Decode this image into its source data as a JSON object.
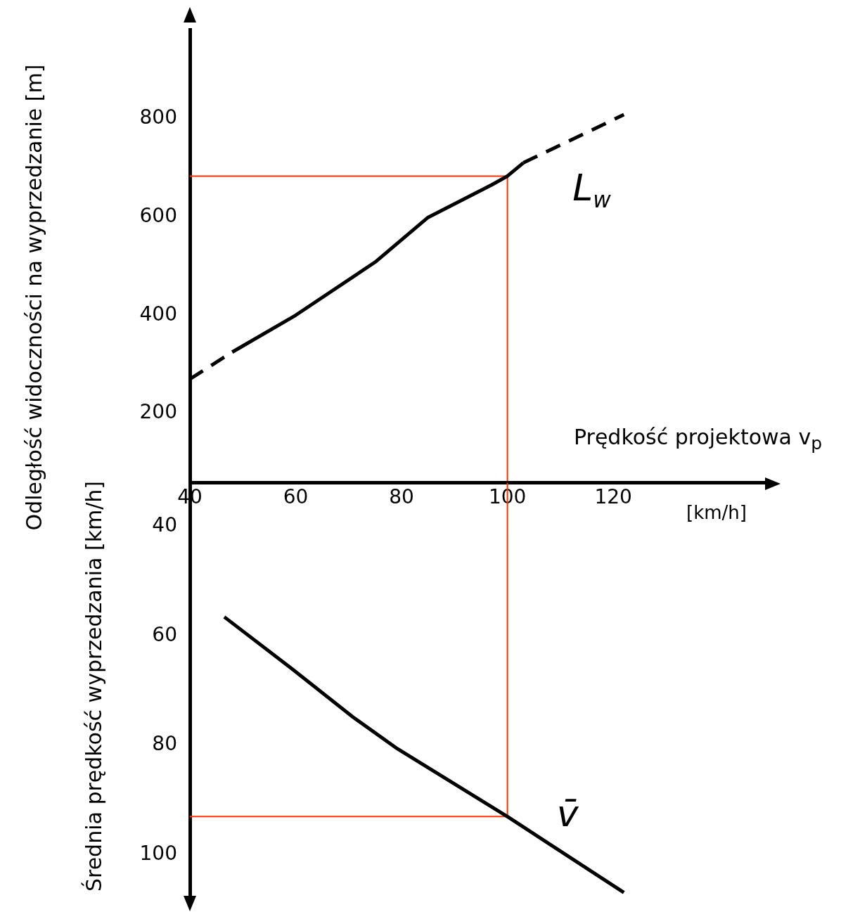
{
  "chart_data": [
    {
      "type": "line",
      "xlabel": "Prędkość projektowa v$_{p}$",
      "ylabel": "Odległość widoczności na wyprzedzanie [m]",
      "annotations": [
        "[km/h]"
      ],
      "xlim": [
        40,
        150
      ],
      "xticks": [
        40,
        60,
        80,
        100,
        120
      ],
      "ylim": [
        60,
        980
      ],
      "yticks": [
        200,
        400,
        600,
        800
      ],
      "grid": false,
      "legend": false,
      "marker": "none",
      "series": [
        {
          "color": "#000000",
          "line_style": "dashed",
          "x": [
            40,
            48
          ],
          "values": [
            270,
            325
          ]
        },
        {
          "name": "L$_{w}$",
          "color": "#000000",
          "line_style": "solid",
          "x": [
            48,
            60,
            75,
            85,
            97,
            100,
            103
          ],
          "values": [
            325,
            400,
            508,
            599,
            665,
            683,
            710
          ]
        },
        {
          "color": "#000000",
          "line_style": "dashed",
          "x": [
            103,
            122
          ],
          "values": [
            710,
            808
          ]
        },
        {
          "color": "#ff3300",
          "line_style": "solid",
          "x": [
            100,
            100,
            40
          ],
          "values": [
            60,
            683,
            683
          ]
        }
      ]
    },
    {
      "type": "line",
      "ylabel": "Średnia prędkość wyprzedzania [km/h]",
      "xlim": [
        40,
        150
      ],
      "xticks": [
        40,
        60,
        80,
        100,
        120
      ],
      "ylim": [
        108,
        32
      ],
      "yticks": [
        40,
        60,
        80,
        100
      ],
      "tick_labels": "y",
      "grid": false,
      "legend": false,
      "marker": "none",
      "series": [
        {
          "name": "v̄",
          "color": "#000000",
          "line_style": "solid",
          "x": [
            46.5,
            59.3,
            70.8,
            78.9,
            100,
            122
          ],
          "values": [
            56.5,
            66,
            74.8,
            80.4,
            93,
            106.9
          ]
        },
        {
          "color": "#ff3300",
          "line_style": "solid",
          "x": [
            100,
            100,
            40
          ],
          "values": [
            32,
            93,
            93
          ]
        }
      ]
    }
  ]
}
